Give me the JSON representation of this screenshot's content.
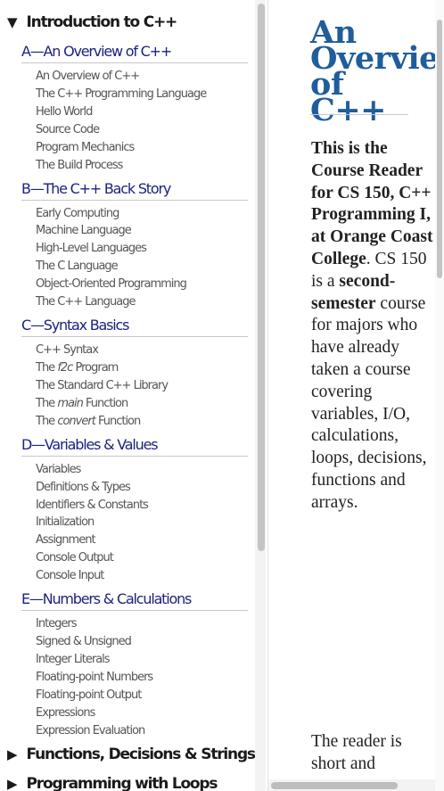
{
  "sidebar": {
    "sections": [
      {
        "label": "Introduction to C++",
        "icon": "triangle-down-icon"
      },
      {
        "label": "Functions, Decisions & Strings",
        "icon": "triangle-right-icon"
      },
      {
        "label": "Programming with Loops",
        "icon": "triangle-right-icon"
      }
    ],
    "chapters": [
      {
        "title": "A—An Overview of C++",
        "items": [
          "An Overview of C++",
          "The C++ Programming Language",
          "Hello World",
          "Source Code",
          "Program Mechanics",
          "The Build Process"
        ]
      },
      {
        "title": "B—The C++ Back Story",
        "items": [
          "Early Computing",
          "Machine Language",
          "High-Level Languages",
          "The C Language",
          "Object-Oriented Programming",
          "The C++ Language"
        ]
      },
      {
        "title": "C—Syntax Basics",
        "items": [
          "C++ Syntax",
          "The",
          "f2c",
          "Program",
          "The Standard C++ Library",
          "The",
          "main",
          "Function",
          "The",
          "convert",
          "Function"
        ]
      },
      {
        "title": "D—Variables & Values",
        "items": [
          "Variables",
          "Definitions & Types",
          "Identifiers & Constants",
          "Initialization",
          "Assignment",
          "Console Output",
          "Console Input"
        ]
      },
      {
        "title": "E—Numbers & Calculations",
        "items": [
          "Integers",
          "Signed & Unsigned",
          "Integer Literals",
          "Floating-point Numbers",
          "Floating-point Output",
          "Expressions",
          "Expression Evaluation"
        ]
      }
    ]
  },
  "main": {
    "title_lines": [
      "An",
      "Overvie",
      "of",
      "C++"
    ],
    "intro": {
      "b1": "This is the Course Reader for CS 150, C++ Programming I, at Orange Coast College",
      "t1": ". CS 150 is a ",
      "b2": "second-semester",
      "t2": " course for majors who have already taken a course covering variables, I/O, calculations, loops, decisions, functions and arrays."
    },
    "para2": "The reader is short and"
  }
}
